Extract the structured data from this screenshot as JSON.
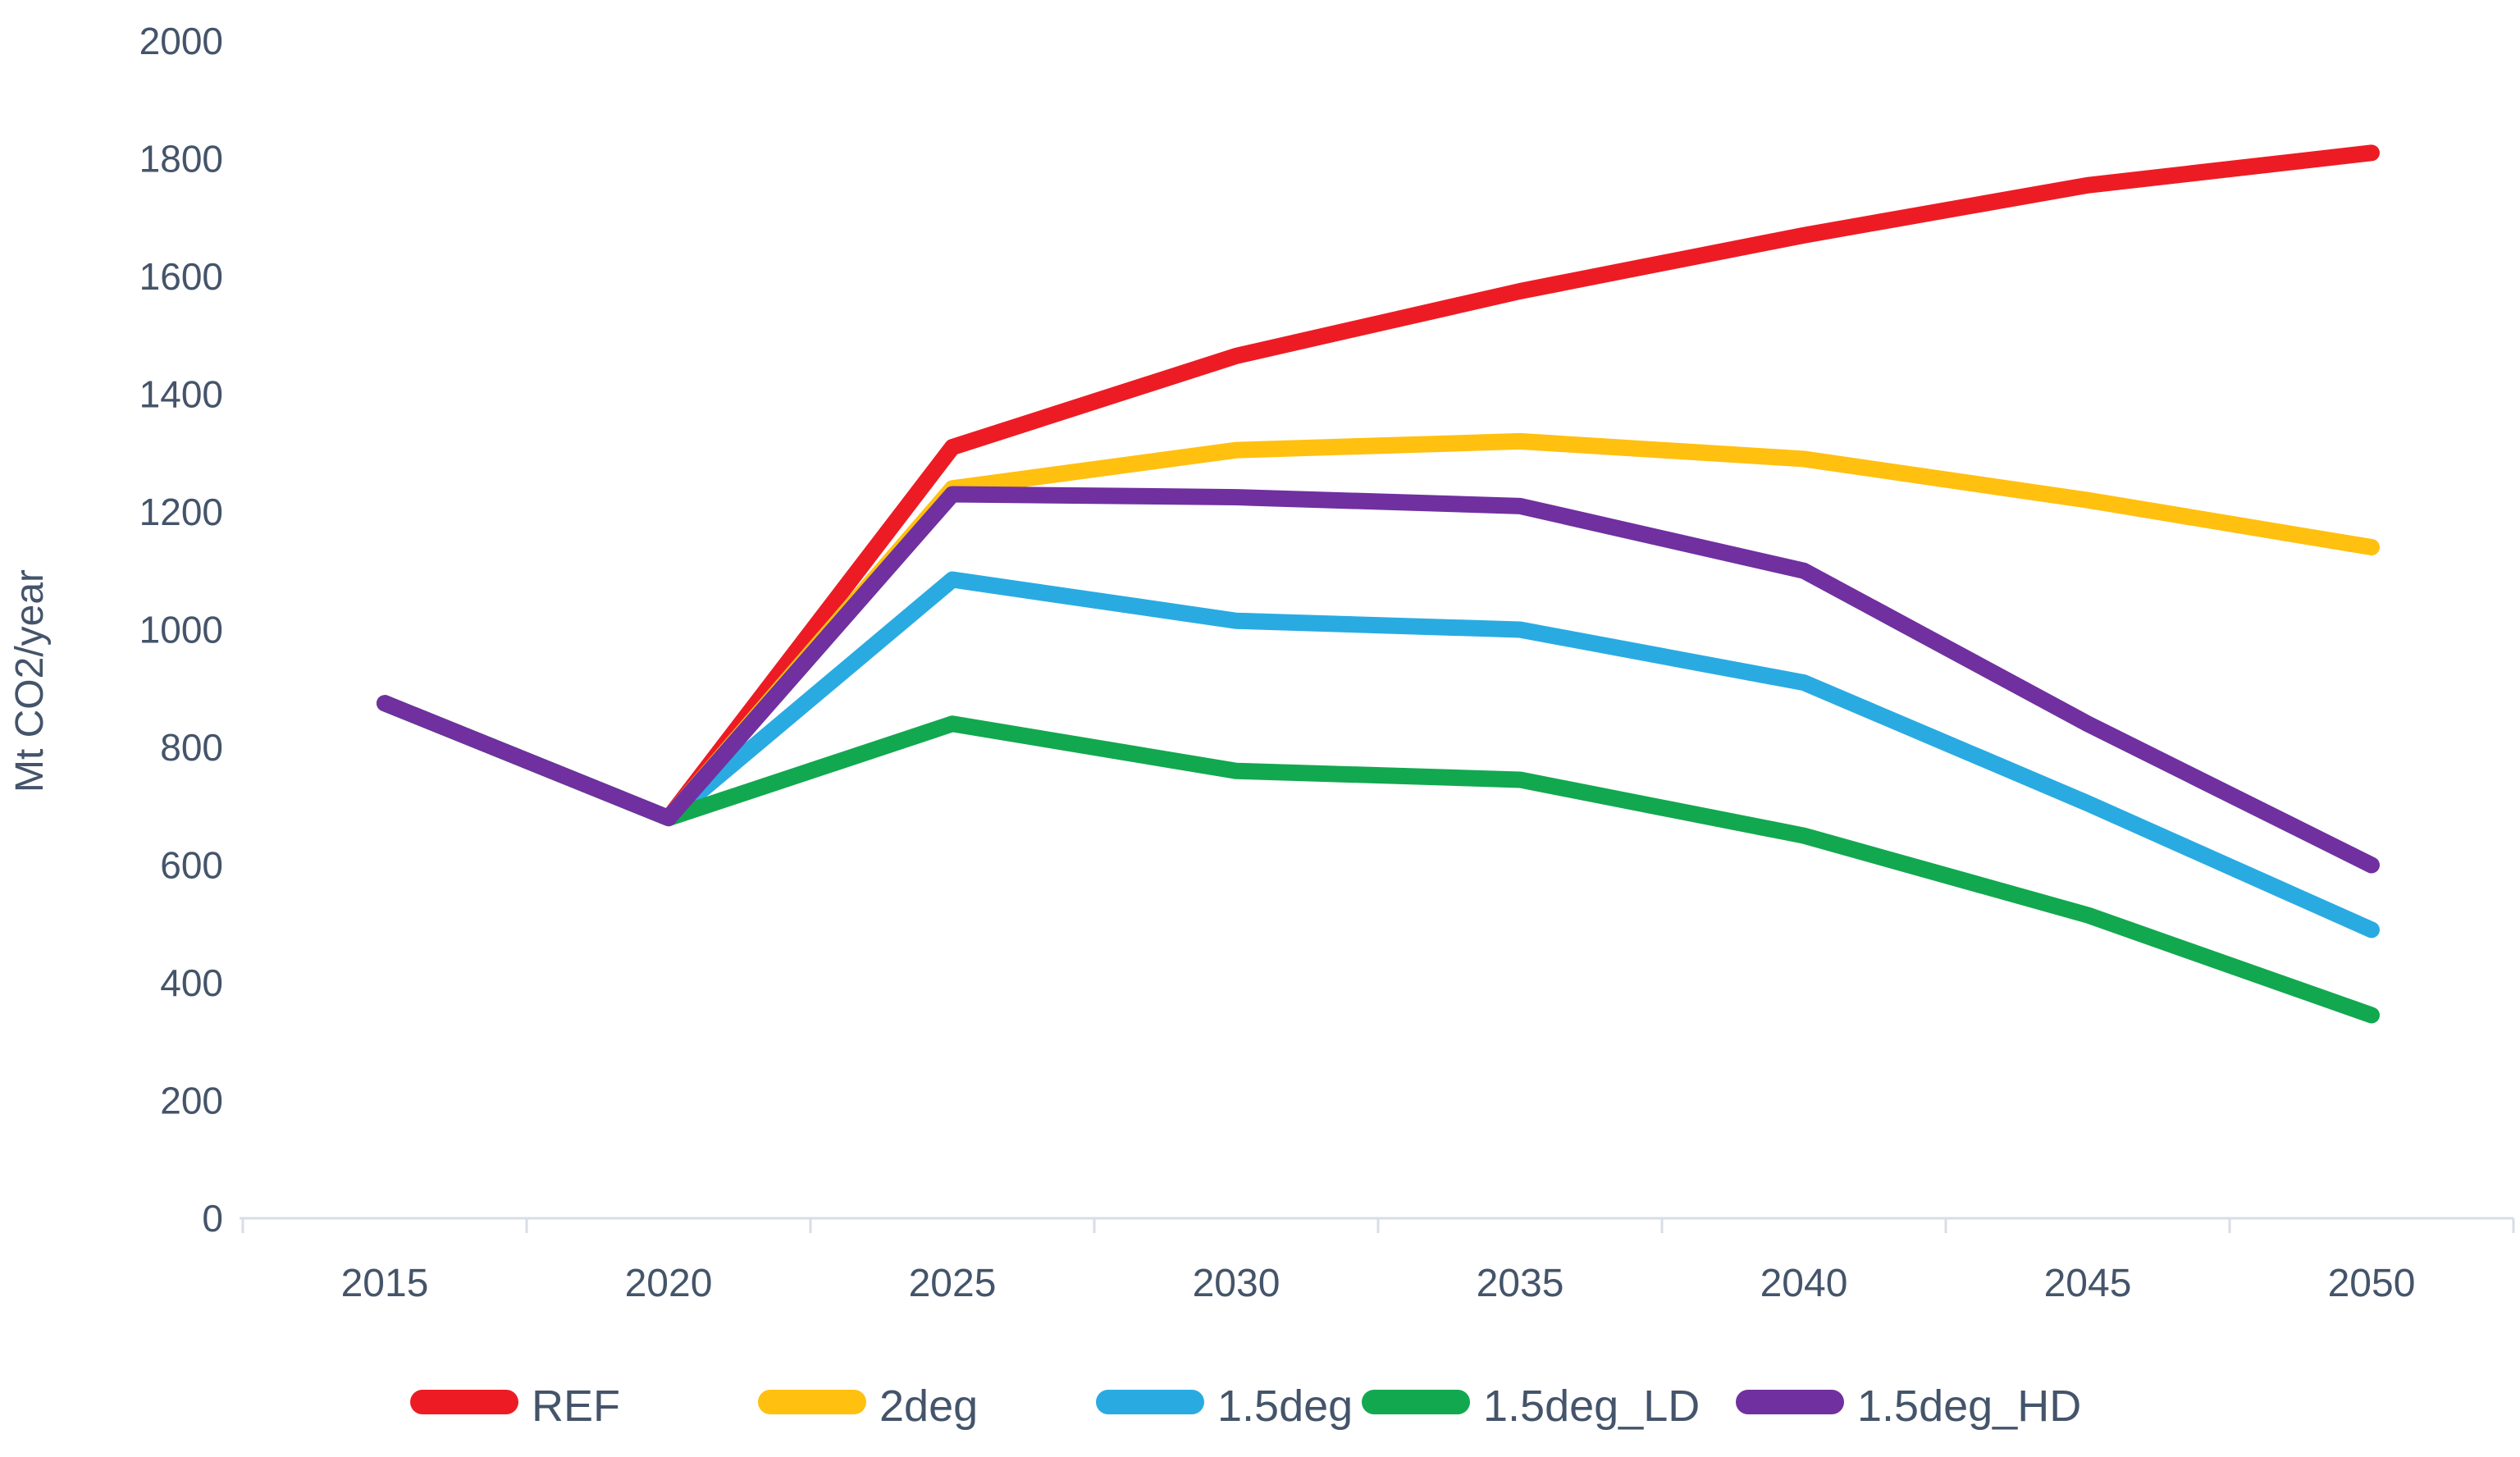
{
  "chart_data": {
    "type": "line",
    "title": "",
    "ylabel": "Mt CO2/year",
    "xlabel": "",
    "categories": [
      "2015",
      "2020",
      "2025",
      "2030",
      "2035",
      "2040",
      "2045",
      "2050"
    ],
    "series": [
      {
        "name": "REF",
        "color": "#ED1C24",
        "values": [
          875,
          680,
          1310,
          1465,
          1575,
          1670,
          1755,
          1810
        ]
      },
      {
        "name": "2deg",
        "color": "#FFC010",
        "values": [
          875,
          680,
          1240,
          1305,
          1320,
          1290,
          1220,
          1140
        ]
      },
      {
        "name": "1.5deg",
        "color": "#29ABE2",
        "values": [
          875,
          680,
          1085,
          1015,
          1000,
          910,
          705,
          490
        ]
      },
      {
        "name": "1.5deg_LD",
        "color": "#12A84F",
        "values": [
          875,
          680,
          840,
          760,
          745,
          650,
          515,
          345
        ]
      },
      {
        "name": "1.5deg_HD",
        "color": "#7030A0",
        "values": [
          875,
          680,
          1230,
          1225,
          1210,
          1100,
          840,
          600
        ]
      }
    ],
    "ylim": [
      0,
      2000
    ],
    "ytick_step": 200,
    "grid": false,
    "legend_position": "bottom",
    "axis_text_color": "#44546A",
    "axis_line_color": "#D9DDE6"
  }
}
